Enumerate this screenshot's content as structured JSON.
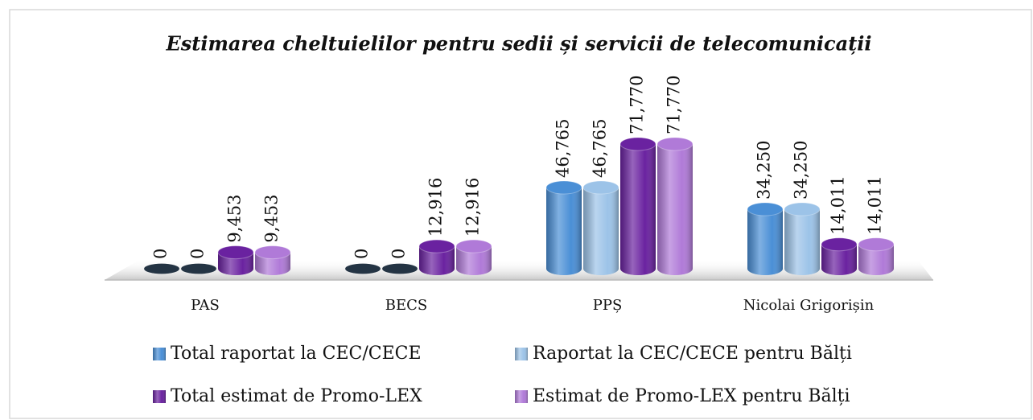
{
  "chart_data": {
    "type": "bar3d",
    "title": "Estimarea cheltuielilor pentru sedii și servicii de telecomunicații",
    "categories": [
      "PAS",
      "BECS",
      "PPȘ",
      "Nicolai Grigorișin"
    ],
    "series": [
      {
        "name": "Total raportat la CEC/CECE",
        "color": "#4a8fd6",
        "values": [
          0,
          0,
          46765,
          34250
        ],
        "value_labels": [
          "0",
          "0",
          "46,765",
          "34,250"
        ]
      },
      {
        "name": "Raportat la CEC/CECE pentru Bălți",
        "color": "#9cc3e8",
        "values": [
          0,
          0,
          46765,
          34250
        ],
        "value_labels": [
          "0",
          "0",
          "46,765",
          "34,250"
        ]
      },
      {
        "name": "Total estimat de Promo-LEX",
        "color": "#6a22a0",
        "values": [
          9453,
          12916,
          71770,
          14011
        ],
        "value_labels": [
          "9,453",
          "12,916",
          "71,770",
          "14,011"
        ]
      },
      {
        "name": "Estimat de Promo-LEX pentru Bălți",
        "color": "#b07ad8",
        "values": [
          9453,
          12916,
          71770,
          14011
        ],
        "value_labels": [
          "9,453",
          "12,916",
          "71,770",
          "14,011"
        ]
      }
    ]
  }
}
